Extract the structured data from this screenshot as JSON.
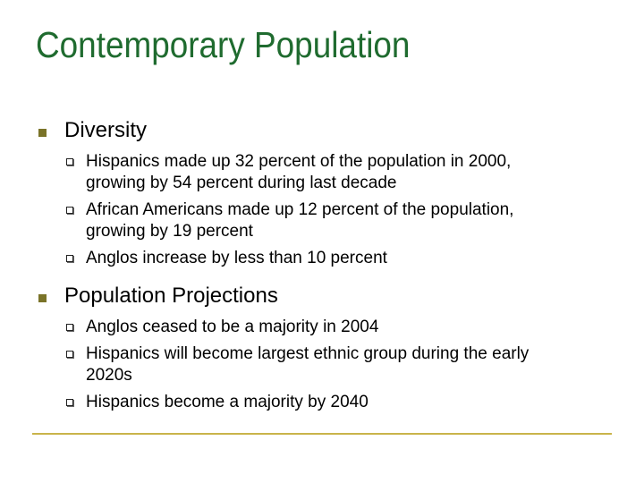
{
  "slide": {
    "title": "Contemporary Population",
    "sections": [
      {
        "heading": "Diversity",
        "items": [
          "Hispanics made up 32 percent of the population in 2000,\ngrowing by 54 percent during last decade",
          "African Americans made up 12 percent of the population,\ngrowing by 19 percent",
          "Anglos increase by less than 10 percent"
        ]
      },
      {
        "heading": "Population Projections",
        "items": [
          "Anglos ceased to be a majority in 2004",
          "Hispanics will become largest ethnic group during the early\n2020s",
          "Hispanics become a majority by 2040"
        ]
      }
    ]
  },
  "colors": {
    "title": "#1f6b2f",
    "primary_bullet": "#7a7328",
    "footer_rule": "#c9b44a"
  }
}
